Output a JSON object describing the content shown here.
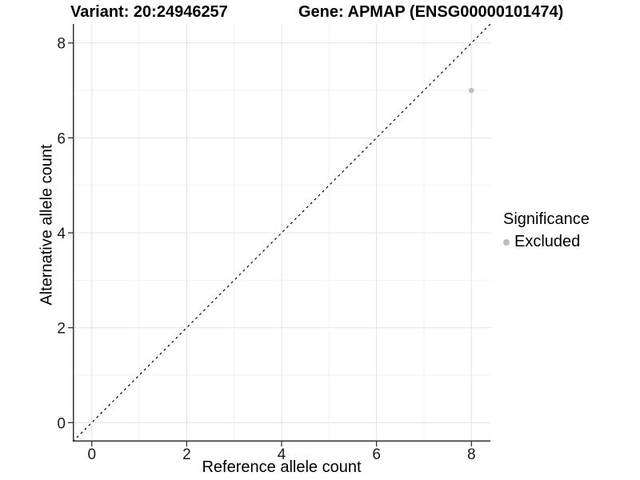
{
  "chart_data": {
    "type": "scatter",
    "title_variant": "Variant: 20:24946257",
    "title_gene": "Gene: APMAP (ENSG00000101474)",
    "xlabel": "Reference allele count",
    "ylabel": "Alternative allele count",
    "xlim": [
      -0.4,
      8.4
    ],
    "ylim": [
      -0.4,
      8.4
    ],
    "x_ticks": [
      0,
      2,
      4,
      6,
      8
    ],
    "y_ticks": [
      0,
      2,
      4,
      6,
      8
    ],
    "grid_lines": [
      0,
      1,
      2,
      3,
      4,
      5,
      6,
      7,
      8
    ],
    "grid": true,
    "reference_line": {
      "type": "identity",
      "style": "dashed",
      "color": "#000000"
    },
    "series": [
      {
        "name": "Excluded",
        "color": "#bdbdbd",
        "points": [
          {
            "x": 8,
            "y": 7
          }
        ]
      }
    ],
    "legend": {
      "title": "Significance",
      "position": "right",
      "items": [
        {
          "label": "Excluded",
          "color": "#bdbdbd",
          "marker": "circle"
        }
      ]
    },
    "styles": {
      "axis_color": "#333333",
      "grid_major_color": "#e5e5e5",
      "grid_minor_color": "#f0f0f0",
      "point_radius": 3.3
    }
  }
}
